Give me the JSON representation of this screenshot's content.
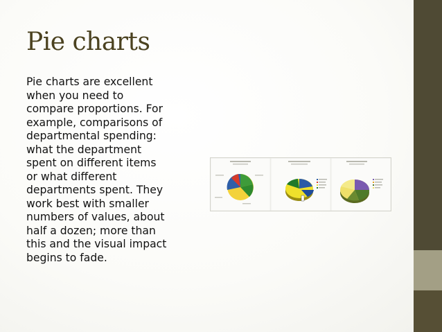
{
  "slide": {
    "title": "Pie charts",
    "body_lines": [
      "Pie charts are excellent",
      "when you need to",
      "compare proportions. For",
      "example, comparisons of",
      "departmental spending:",
      "what the department",
      "spent on different items",
      "or what different",
      "departments spent. They",
      "work best with smaller",
      "numbers of values, about",
      "half a dozen; more than",
      "this and the visual impact",
      "begins to fade."
    ]
  },
  "theme": {
    "title_color": "#4b4220",
    "bar_dark": "#4f4a34",
    "bar_light": "#a39f85"
  },
  "image": {
    "description_icon": "pie-chart-examples-image"
  }
}
